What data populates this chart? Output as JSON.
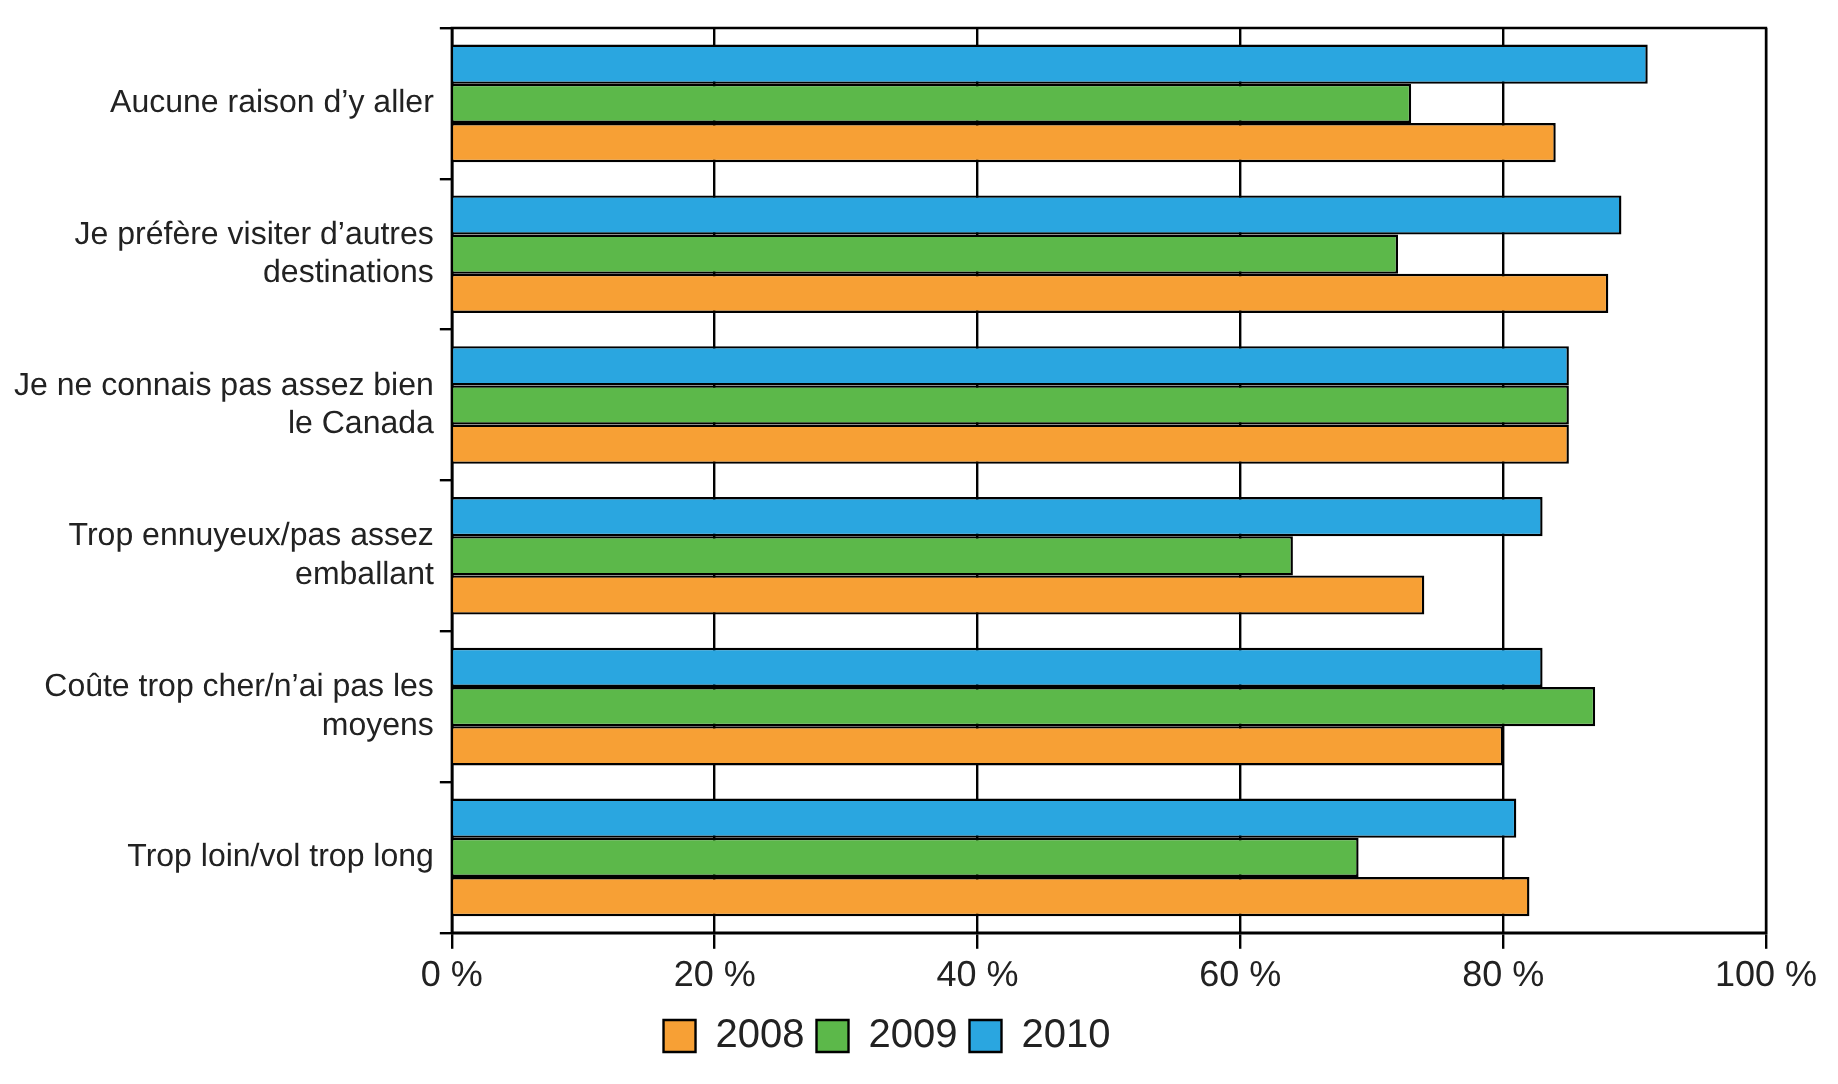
{
  "chart_data": {
    "type": "bar",
    "orientation": "horizontal",
    "categories": [
      "Aucune raison d’y aller",
      "Je préfère visiter d’autres destinations",
      "Je ne connais pas assez bien le Canada",
      "Trop ennuyeux/pas assez emballant",
      "Coûte trop cher/n’ai pas les moyens",
      "Trop loin/vol trop long"
    ],
    "series": [
      {
        "name": "2008",
        "color": "#f7a035",
        "values": [
          84,
          88,
          85,
          74,
          80,
          82
        ]
      },
      {
        "name": "2009",
        "color": "#5cb84a",
        "values": [
          73,
          72,
          85,
          64,
          87,
          69
        ]
      },
      {
        "name": "2010",
        "color": "#2aa6e0",
        "values": [
          91,
          89,
          85,
          83,
          83,
          81
        ]
      }
    ],
    "xlim": [
      0,
      100
    ],
    "xticks": [
      {
        "value": 0,
        "label": "0 %"
      },
      {
        "value": 20,
        "label": "20 %"
      },
      {
        "value": 40,
        "label": "40 %"
      },
      {
        "value": 60,
        "label": "60 %"
      },
      {
        "value": 80,
        "label": "80 %"
      },
      {
        "value": 100,
        "label": "100 %"
      }
    ],
    "grid": "x",
    "legend": "bottom"
  }
}
